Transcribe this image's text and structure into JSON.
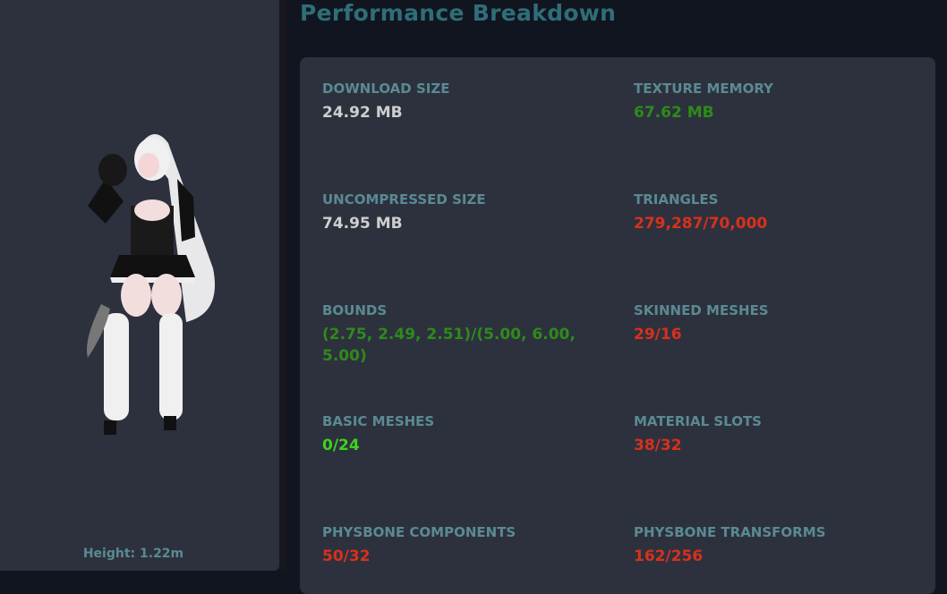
{
  "title": "Performance Breakdown",
  "avatar": {
    "height_label": "Height: 1.22m"
  },
  "stats": [
    {
      "label": "DOWNLOAD SIZE",
      "value": "24.92 MB",
      "color": "#cfcfcf"
    },
    {
      "label": "TEXTURE MEMORY",
      "value": "67.62 MB",
      "color": "#2e8b1a"
    },
    {
      "label": "UNCOMPRESSED SIZE",
      "value": "74.95 MB",
      "color": "#cfcfcf"
    },
    {
      "label": "TRIANGLES",
      "value": "279,287/70,000",
      "color": "#d9301c"
    },
    {
      "label": "BOUNDS",
      "value": "(2.75, 2.49, 2.51)/(5.00, 6.00, 5.00)",
      "color": "#2e8b1a"
    },
    {
      "label": "SKINNED MESHES",
      "value": "29/16",
      "color": "#d9301c"
    },
    {
      "label": "BASIC MESHES",
      "value": "0/24",
      "color": "#3ed21e"
    },
    {
      "label": "MATERIAL SLOTS",
      "value": "38/32",
      "color": "#d9301c"
    },
    {
      "label": "PHYSBONE COMPONENTS",
      "value": "50/32",
      "color": "#d9301c"
    },
    {
      "label": "PHYSBONE TRANSFORMS",
      "value": "162/256",
      "color": "#d9301c"
    }
  ]
}
